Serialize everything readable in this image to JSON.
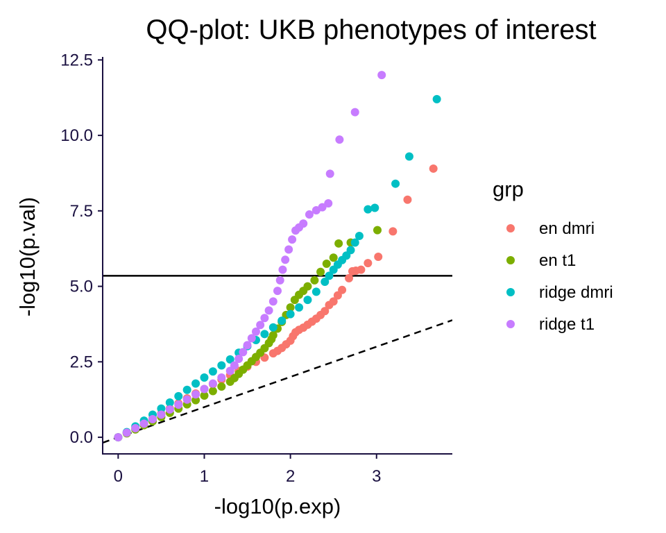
{
  "chart_data": {
    "type": "scatter",
    "title": "QQ-plot: UKB phenotypes of interest",
    "xlabel": "-log10(p.exp)",
    "ylabel": "-log10(p.val)",
    "xlim": [
      -0.18,
      3.88
    ],
    "ylim": [
      -0.55,
      12.6
    ],
    "x_ticks": [
      0,
      1,
      2,
      3
    ],
    "x_tick_labels": [
      "0",
      "1",
      "2",
      "3"
    ],
    "y_ticks": [
      0,
      2.5,
      5,
      7.5,
      10,
      12.5
    ],
    "y_tick_labels": [
      "0.0",
      "2.5",
      "5.0",
      "7.5",
      "10.0",
      "12.5"
    ],
    "grid": false,
    "legend": {
      "title": "grp",
      "position": "right"
    },
    "reference_lines": [
      {
        "kind": "horizontal",
        "y": 5.35,
        "style": "solid",
        "color": "#000000"
      },
      {
        "kind": "abline",
        "slope": 1.0,
        "intercept": 0,
        "style": "dashed",
        "color": "#000000"
      }
    ],
    "series": [
      {
        "name": "en dmri",
        "color": "#F8766D",
        "points": [
          [
            0.0,
            0.0
          ],
          [
            0.1,
            0.15
          ],
          [
            0.2,
            0.3
          ],
          [
            0.3,
            0.46
          ],
          [
            0.4,
            0.62
          ],
          [
            0.5,
            0.78
          ],
          [
            0.6,
            0.95
          ],
          [
            0.7,
            1.12
          ],
          [
            0.8,
            1.29
          ],
          [
            0.9,
            1.45
          ],
          [
            1.0,
            1.6
          ],
          [
            1.1,
            1.76
          ],
          [
            1.2,
            1.91
          ],
          [
            1.3,
            2.06
          ],
          [
            1.4,
            2.2
          ],
          [
            1.5,
            2.34
          ],
          [
            1.6,
            2.5
          ],
          [
            1.7,
            2.64
          ],
          [
            1.8,
            2.78
          ],
          [
            1.85,
            2.86
          ],
          [
            1.9,
            2.96
          ],
          [
            1.95,
            3.08
          ],
          [
            2.0,
            3.2
          ],
          [
            2.03,
            3.35
          ],
          [
            2.06,
            3.48
          ],
          [
            2.1,
            3.56
          ],
          [
            2.15,
            3.63
          ],
          [
            2.2,
            3.73
          ],
          [
            2.25,
            3.83
          ],
          [
            2.3,
            3.93
          ],
          [
            2.35,
            4.05
          ],
          [
            2.4,
            4.18
          ],
          [
            2.45,
            4.38
          ],
          [
            2.5,
            4.5
          ],
          [
            2.55,
            4.7
          ],
          [
            2.6,
            4.88
          ],
          [
            2.68,
            5.27
          ],
          [
            2.72,
            5.5
          ],
          [
            2.76,
            5.52
          ],
          [
            2.82,
            5.55
          ],
          [
            2.9,
            5.77
          ],
          [
            3.02,
            5.98
          ],
          [
            3.19,
            6.82
          ],
          [
            3.36,
            7.87
          ],
          [
            3.66,
            8.9
          ]
        ]
      },
      {
        "name": "en t1",
        "color": "#7CAE00",
        "points": [
          [
            0.0,
            0.0
          ],
          [
            0.1,
            0.13
          ],
          [
            0.2,
            0.26
          ],
          [
            0.3,
            0.4
          ],
          [
            0.4,
            0.53
          ],
          [
            0.5,
            0.67
          ],
          [
            0.6,
            0.81
          ],
          [
            0.7,
            0.95
          ],
          [
            0.8,
            1.09
          ],
          [
            0.9,
            1.23
          ],
          [
            1.0,
            1.38
          ],
          [
            1.1,
            1.53
          ],
          [
            1.2,
            1.68
          ],
          [
            1.3,
            1.84
          ],
          [
            1.35,
            1.96
          ],
          [
            1.4,
            2.1
          ],
          [
            1.45,
            2.24
          ],
          [
            1.5,
            2.38
          ],
          [
            1.55,
            2.52
          ],
          [
            1.6,
            2.66
          ],
          [
            1.65,
            2.8
          ],
          [
            1.7,
            2.95
          ],
          [
            1.75,
            3.12
          ],
          [
            1.78,
            3.25
          ],
          [
            1.8,
            3.38
          ],
          [
            1.85,
            3.6
          ],
          [
            1.9,
            3.82
          ],
          [
            1.95,
            4.05
          ],
          [
            2.0,
            4.3
          ],
          [
            2.05,
            4.55
          ],
          [
            2.1,
            4.72
          ],
          [
            2.15,
            4.85
          ],
          [
            2.2,
            5.0
          ],
          [
            2.28,
            5.2
          ],
          [
            2.35,
            5.48
          ],
          [
            2.42,
            5.75
          ],
          [
            2.5,
            5.95
          ],
          [
            2.56,
            6.42
          ],
          [
            2.7,
            6.45
          ],
          [
            3.01,
            6.86
          ]
        ]
      },
      {
        "name": "ridge dmri",
        "color": "#00BFC4",
        "points": [
          [
            0.0,
            0.0
          ],
          [
            0.1,
            0.17
          ],
          [
            0.2,
            0.36
          ],
          [
            0.3,
            0.55
          ],
          [
            0.4,
            0.75
          ],
          [
            0.5,
            0.95
          ],
          [
            0.6,
            1.15
          ],
          [
            0.7,
            1.36
          ],
          [
            0.8,
            1.57
          ],
          [
            0.9,
            1.78
          ],
          [
            1.0,
            1.98
          ],
          [
            1.1,
            2.18
          ],
          [
            1.2,
            2.38
          ],
          [
            1.3,
            2.58
          ],
          [
            1.4,
            2.8
          ],
          [
            1.5,
            3.02
          ],
          [
            1.6,
            3.22
          ],
          [
            1.7,
            3.42
          ],
          [
            1.8,
            3.64
          ],
          [
            1.9,
            3.86
          ],
          [
            2.0,
            4.08
          ],
          [
            2.1,
            4.3
          ],
          [
            2.2,
            4.55
          ],
          [
            2.3,
            4.82
          ],
          [
            2.4,
            5.15
          ],
          [
            2.45,
            5.35
          ],
          [
            2.5,
            5.55
          ],
          [
            2.55,
            5.72
          ],
          [
            2.6,
            5.87
          ],
          [
            2.65,
            6.02
          ],
          [
            2.7,
            6.2
          ],
          [
            2.75,
            6.45
          ],
          [
            2.8,
            6.67
          ],
          [
            2.9,
            7.55
          ],
          [
            2.98,
            7.6
          ],
          [
            3.22,
            8.4
          ],
          [
            3.38,
            9.3
          ],
          [
            3.7,
            11.2
          ]
        ]
      },
      {
        "name": "ridge t1",
        "color": "#C77CFF",
        "points": [
          [
            0.0,
            0.0
          ],
          [
            0.1,
            0.15
          ],
          [
            0.2,
            0.3
          ],
          [
            0.3,
            0.45
          ],
          [
            0.4,
            0.6
          ],
          [
            0.5,
            0.75
          ],
          [
            0.6,
            0.92
          ],
          [
            0.7,
            1.08
          ],
          [
            0.8,
            1.25
          ],
          [
            0.9,
            1.42
          ],
          [
            1.0,
            1.6
          ],
          [
            1.1,
            1.78
          ],
          [
            1.2,
            1.98
          ],
          [
            1.3,
            2.2
          ],
          [
            1.35,
            2.38
          ],
          [
            1.4,
            2.6
          ],
          [
            1.45,
            2.82
          ],
          [
            1.5,
            3.05
          ],
          [
            1.55,
            3.28
          ],
          [
            1.6,
            3.5
          ],
          [
            1.65,
            3.72
          ],
          [
            1.7,
            3.95
          ],
          [
            1.75,
            4.2
          ],
          [
            1.8,
            4.5
          ],
          [
            1.85,
            4.85
          ],
          [
            1.88,
            5.2
          ],
          [
            1.91,
            5.55
          ],
          [
            1.94,
            5.88
          ],
          [
            1.98,
            6.22
          ],
          [
            2.02,
            6.55
          ],
          [
            2.06,
            6.85
          ],
          [
            2.1,
            6.95
          ],
          [
            2.15,
            7.08
          ],
          [
            2.22,
            7.38
          ],
          [
            2.3,
            7.52
          ],
          [
            2.37,
            7.62
          ],
          [
            2.44,
            7.75
          ],
          [
            2.46,
            8.73
          ],
          [
            2.57,
            9.86
          ],
          [
            2.75,
            10.77
          ],
          [
            3.06,
            12.0
          ]
        ]
      }
    ]
  }
}
